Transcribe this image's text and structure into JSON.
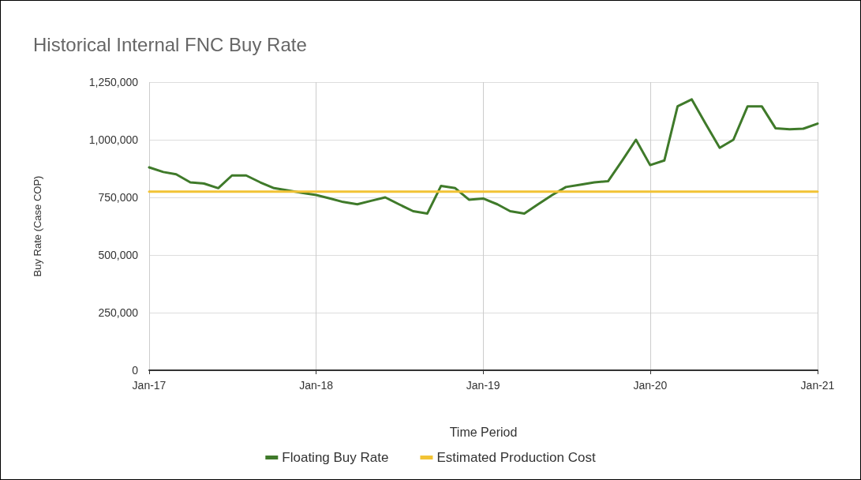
{
  "chart_data": {
    "type": "line",
    "title": "Historical Internal FNC Buy Rate",
    "xlabel": "Time Period",
    "ylabel": "Buy Rate (Case COP)",
    "x": [
      "2017-01",
      "2017-02",
      "2017-03",
      "2017-04",
      "2017-05",
      "2017-06",
      "2017-07",
      "2017-08",
      "2017-09",
      "2017-10",
      "2017-11",
      "2017-12",
      "2018-01",
      "2018-02",
      "2018-03",
      "2018-04",
      "2018-05",
      "2018-06",
      "2018-07",
      "2018-08",
      "2018-09",
      "2018-10",
      "2018-11",
      "2018-12",
      "2019-01",
      "2019-02",
      "2019-03",
      "2019-04",
      "2019-05",
      "2019-06",
      "2019-07",
      "2019-08",
      "2019-09",
      "2019-10",
      "2019-11",
      "2019-12",
      "2020-01",
      "2020-02",
      "2020-03",
      "2020-04",
      "2020-05",
      "2020-06",
      "2020-07",
      "2020-08",
      "2020-09",
      "2020-10",
      "2020-11",
      "2020-12",
      "2021-01"
    ],
    "series": [
      {
        "name": "Floating Buy Rate",
        "color": "#3f7a2a",
        "values": [
          880000,
          860000,
          850000,
          815000,
          810000,
          790000,
          845000,
          845000,
          815000,
          790000,
          780000,
          770000,
          760000,
          745000,
          730000,
          720000,
          735000,
          750000,
          720000,
          690000,
          680000,
          800000,
          790000,
          740000,
          745000,
          720000,
          690000,
          680000,
          720000,
          760000,
          795000,
          805000,
          815000,
          820000,
          910000,
          1000000,
          890000,
          910000,
          1145000,
          1175000,
          1070000,
          965000,
          1000000,
          1145000,
          1145000,
          1050000,
          1045000,
          1048000,
          1070000
        ]
      },
      {
        "name": "Estimated Production Cost",
        "color": "#f2c335",
        "x": [
          "2017-01",
          "2021-01"
        ],
        "values": [
          775000,
          775000
        ]
      }
    ],
    "xlim": [
      "2017-01",
      "2021-01"
    ],
    "xticks": [
      {
        "value": "2017-01",
        "label": "Jan-17"
      },
      {
        "value": "2018-01",
        "label": "Jan-18"
      },
      {
        "value": "2019-01",
        "label": "Jan-19"
      },
      {
        "value": "2020-01",
        "label": "Jan-20"
      },
      {
        "value": "2021-01",
        "label": "Jan-21"
      }
    ],
    "ylim": [
      0,
      1250000
    ],
    "yticks": [
      {
        "value": 0,
        "label": "0"
      },
      {
        "value": 250000,
        "label": "250,000"
      },
      {
        "value": 500000,
        "label": "500,000"
      },
      {
        "value": 750000,
        "label": "750,000"
      },
      {
        "value": 1000000,
        "label": "1,000,000"
      },
      {
        "value": 1250000,
        "label": "1,250,000"
      }
    ],
    "grid": true,
    "legend": "bottom",
    "marker": "none",
    "line_style": "solid"
  }
}
